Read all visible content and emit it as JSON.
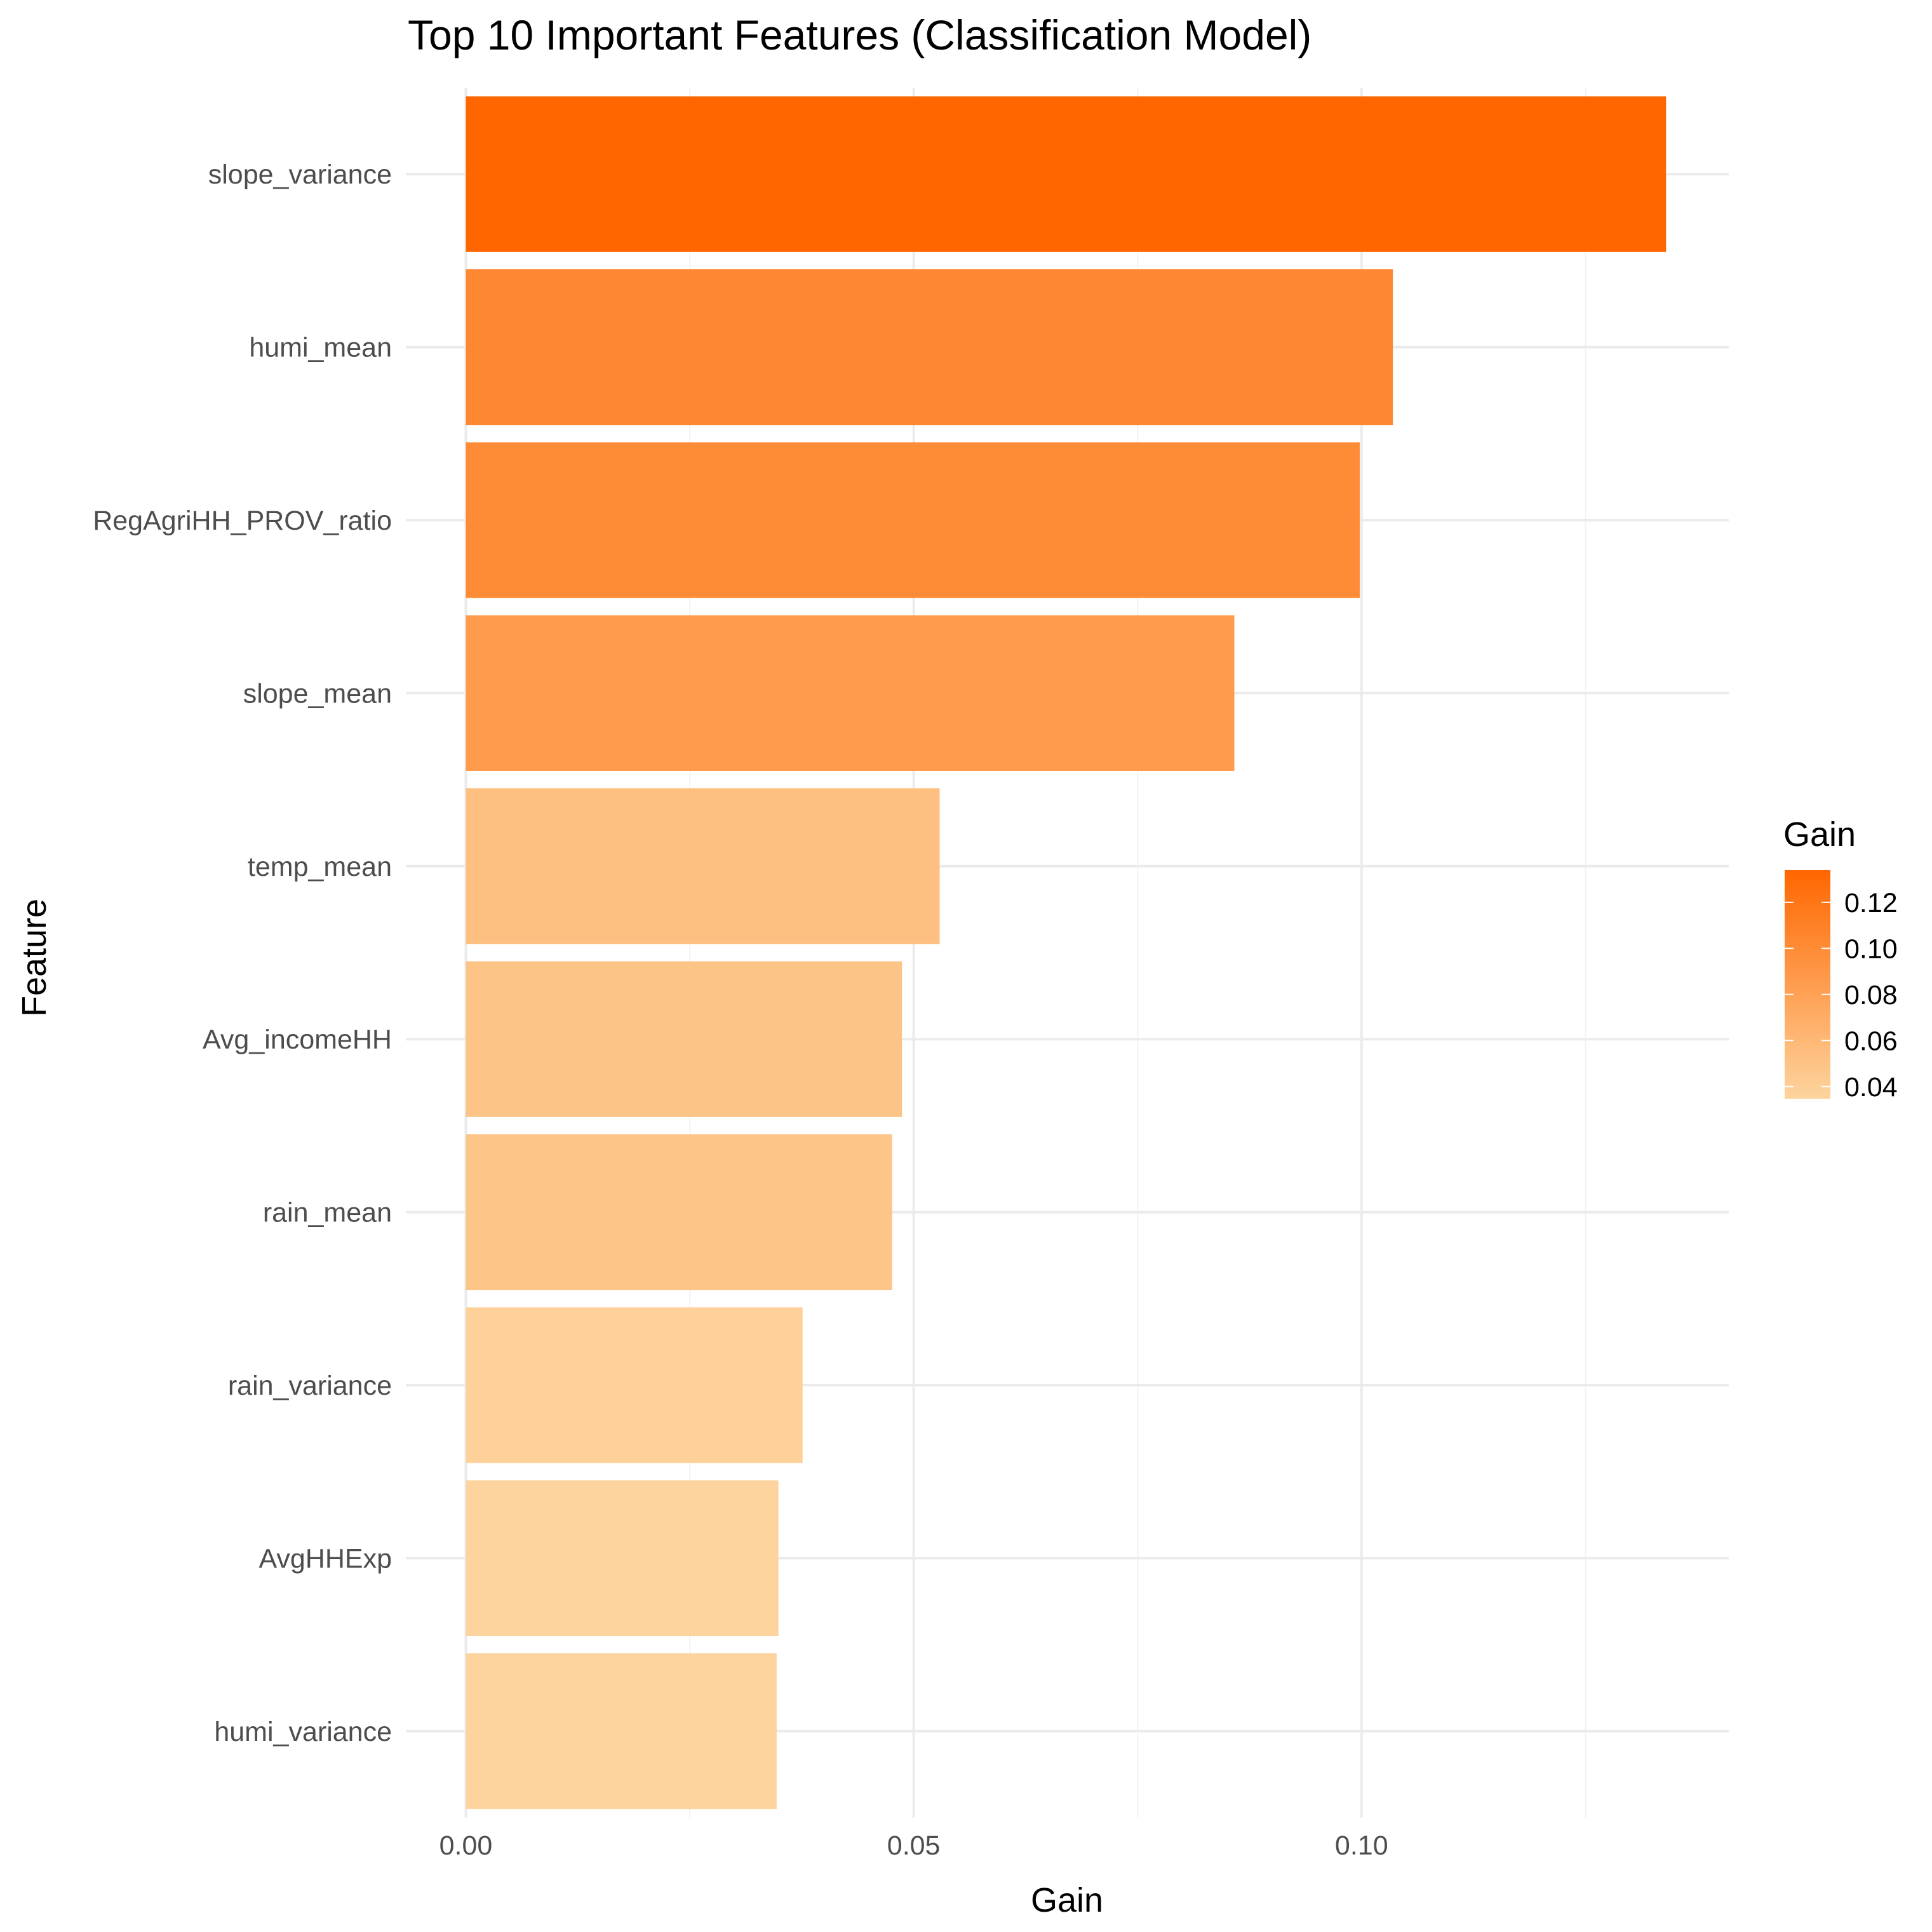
{
  "chart_data": {
    "type": "bar",
    "orientation": "horizontal",
    "title": "Top 10 Important Features (Classification Model)",
    "xlabel": "Gain",
    "ylabel": "Feature",
    "categories": [
      "slope_variance",
      "humi_mean",
      "RegAgriHH_PROV_ratio",
      "slope_mean",
      "temp_mean",
      "Avg_incomeHH",
      "rain_mean",
      "rain_variance",
      "AvgHHExp",
      "humi_variance"
    ],
    "values": [
      0.134,
      0.1035,
      0.0998,
      0.0858,
      0.0529,
      0.0487,
      0.0476,
      0.0376,
      0.0349,
      0.0347
    ],
    "xlim": [
      -0.0067,
      0.141
    ],
    "x_ticks": [
      0.0,
      0.05,
      0.1
    ],
    "x_tick_labels": [
      "0.00",
      "0.05",
      "0.10"
    ],
    "grid": true,
    "theme": "minimal",
    "legend": {
      "title": "Gain",
      "placement": "right",
      "type": "colorbar",
      "ticks": [
        0.04,
        0.06,
        0.08,
        0.1,
        0.12
      ],
      "tick_labels": [
        "0.04",
        "0.06",
        "0.08",
        "0.10",
        "0.12"
      ],
      "range": [
        0.0347,
        0.134
      ],
      "low_color": "#FDD49E",
      "high_color": "#FF6600"
    },
    "colors": {
      "grid_major": "#ebebeb",
      "grid_minor": "#f3f3f3",
      "tick_text": "#4d4d4d"
    }
  }
}
